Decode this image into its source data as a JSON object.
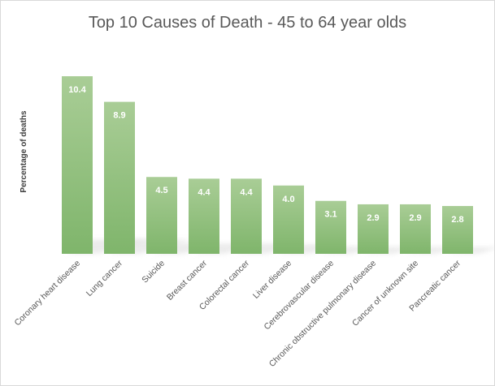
{
  "chart_data": {
    "type": "bar",
    "title": "Top 10 Causes of Death - 45 to 64 year olds",
    "ylabel": "Percentage of deaths",
    "xlabel": "",
    "categories": [
      "Coronary heart disease",
      "Lung cancer",
      "Suicide",
      "Breast cancer",
      "Colorectal cancer",
      "Liver disease",
      "Cerebrovascular disease",
      "Chronic obstructive pulmonary disease",
      "Cancer of unknown site",
      "Pancreatic cancer"
    ],
    "values": [
      10.4,
      8.9,
      4.5,
      4.4,
      4.4,
      4.0,
      3.1,
      2.9,
      2.9,
      2.8
    ],
    "value_labels": [
      "10.4",
      "8.9",
      "4.5",
      "4.4",
      "4.4",
      "4.0",
      "3.1",
      "2.9",
      "2.9",
      "2.8"
    ],
    "ylim": [
      0,
      10.4
    ],
    "grid": false,
    "legend": "none",
    "colors": {
      "bar_top": "#a9cd96",
      "bar_bottom": "#7fb56b",
      "text": "#595959"
    }
  }
}
